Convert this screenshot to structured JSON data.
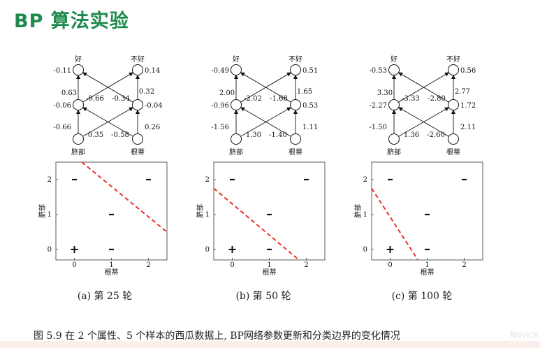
{
  "slide_title": "BP 算法实验",
  "networks": [
    {
      "out_labels": [
        "好",
        "不好"
      ],
      "in_labels": [
        "脐部",
        "根蒂"
      ],
      "out_bias": [
        "-0.11",
        "0.14"
      ],
      "hid_bias": [
        "-0.06",
        "-0.04"
      ],
      "in_bias": [
        "-0.66",
        "0.26"
      ],
      "w_ho": [
        "0.63",
        "-0.66",
        "-0.34",
        "0.32"
      ],
      "w_ih": [
        "0.35",
        "-0.58"
      ]
    },
    {
      "out_labels": [
        "好",
        "不好"
      ],
      "in_labels": [
        "脐部",
        "根蒂"
      ],
      "out_bias": [
        "-0.49",
        "0.51"
      ],
      "hid_bias": [
        "-0.96",
        "0.53"
      ],
      "in_bias": [
        "-1.56",
        "1.11"
      ],
      "w_ho": [
        "2.00",
        "-2.02",
        "-1.68",
        "1.65"
      ],
      "w_ih": [
        "1.30",
        "-1.40"
      ]
    },
    {
      "out_labels": [
        "好",
        "不好"
      ],
      "in_labels": [
        "脐部",
        "根蒂"
      ],
      "out_bias": [
        "-0.53",
        "0.56"
      ],
      "hid_bias": [
        "-2.27",
        "1.72"
      ],
      "in_bias": [
        "-1.50",
        "2.11"
      ],
      "w_ho": [
        "3.30",
        "-3.33",
        "-2.80",
        "2.77"
      ],
      "w_ih": [
        "1.36",
        "-2.60"
      ]
    }
  ],
  "chart_data": [
    {
      "type": "scatter",
      "xlabel": "根蒂",
      "ylabel": "脐部",
      "xlim": [
        -0.5,
        2.5
      ],
      "ylim": [
        -0.3,
        2.5
      ],
      "xticks": [
        "0",
        "1",
        "2"
      ],
      "yticks": [
        "0",
        "1",
        "2"
      ],
      "points": [
        {
          "x": 0,
          "y": 0,
          "marker": "+"
        },
        {
          "x": 1,
          "y": 0,
          "marker": "-"
        },
        {
          "x": 1,
          "y": 1,
          "marker": "-"
        },
        {
          "x": 0,
          "y": 2,
          "marker": "-"
        },
        {
          "x": 2,
          "y": 2,
          "marker": "-"
        }
      ],
      "boundary": [
        [
          0.2,
          2.5
        ],
        [
          2.5,
          0.5
        ]
      ],
      "boundary_color": "#e8322a"
    },
    {
      "type": "scatter",
      "xlabel": "根蒂",
      "ylabel": "脐部",
      "xlim": [
        -0.5,
        2.5
      ],
      "ylim": [
        -0.3,
        2.5
      ],
      "xticks": [
        "0",
        "1",
        "2"
      ],
      "yticks": [
        "0",
        "1",
        "2"
      ],
      "points": [
        {
          "x": 0,
          "y": 0,
          "marker": "+"
        },
        {
          "x": 1,
          "y": 0,
          "marker": "-"
        },
        {
          "x": 1,
          "y": 1,
          "marker": "-"
        },
        {
          "x": 0,
          "y": 2,
          "marker": "-"
        },
        {
          "x": 2,
          "y": 2,
          "marker": "-"
        }
      ],
      "boundary": [
        [
          -0.5,
          1.75
        ],
        [
          1.8,
          -0.3
        ]
      ],
      "boundary_color": "#e8322a"
    },
    {
      "type": "scatter",
      "xlabel": "根蒂",
      "ylabel": "脐部",
      "xlim": [
        -0.5,
        2.5
      ],
      "ylim": [
        -0.3,
        2.5
      ],
      "xticks": [
        "0",
        "1",
        "2"
      ],
      "yticks": [
        "0",
        "1",
        "2"
      ],
      "points": [
        {
          "x": 0,
          "y": 0,
          "marker": "+"
        },
        {
          "x": 1,
          "y": 0,
          "marker": "-"
        },
        {
          "x": 1,
          "y": 1,
          "marker": "-"
        },
        {
          "x": 0,
          "y": 2,
          "marker": "-"
        },
        {
          "x": 2,
          "y": 2,
          "marker": "-"
        }
      ],
      "boundary": [
        [
          -0.5,
          1.75
        ],
        [
          0.75,
          -0.3
        ]
      ],
      "boundary_color": "#e8322a"
    }
  ],
  "subcaptions": [
    "(a) 第 25 轮",
    "(b) 第 50 轮",
    "(c) 第 100 轮"
  ],
  "figure_caption": "图 5.9   在 2 个属性、5 个样本的西瓜数据上, BP网络参数更新和分类边界的变化情况",
  "watermark": "Novice"
}
